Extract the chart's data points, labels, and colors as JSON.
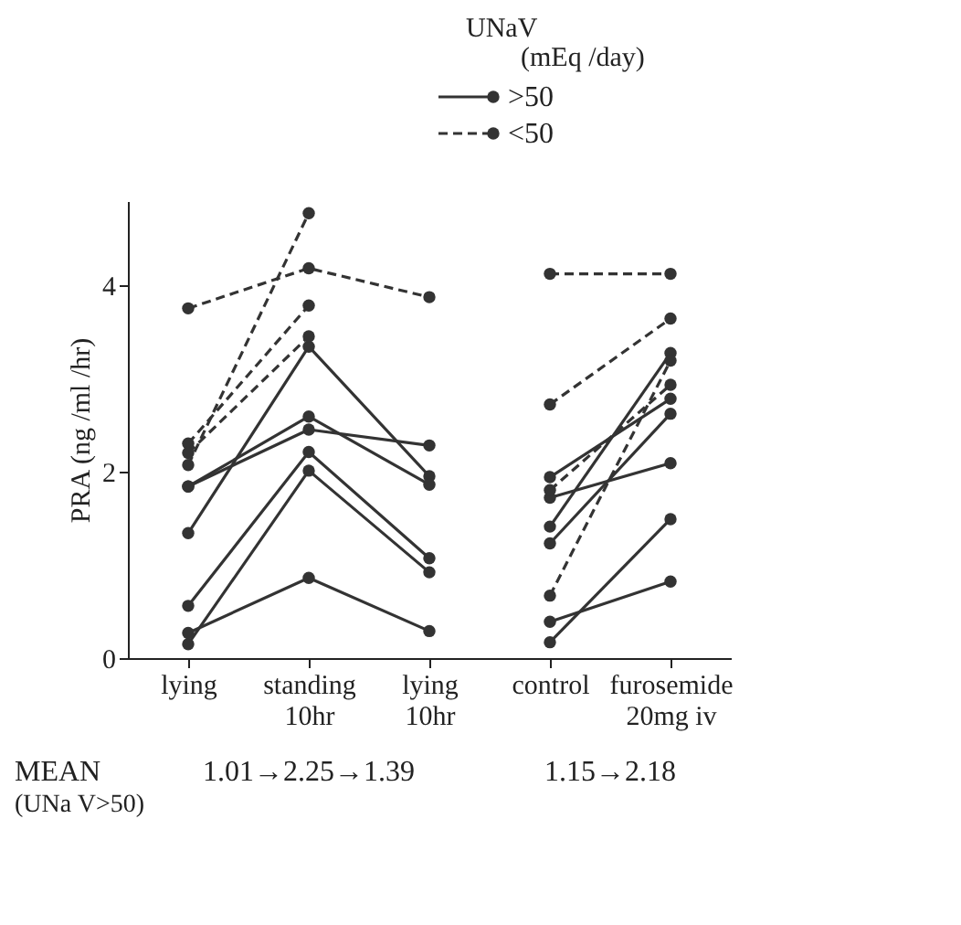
{
  "chart_data": {
    "type": "line",
    "ylabel": "PRA  (ng /ml /hr)",
    "legend_title": "UNaV\n(mEq /day)",
    "legend": "top right",
    "marker": "circle",
    "grid": false,
    "ylim": [
      0,
      4.9
    ],
    "yticks": [
      0,
      2,
      4
    ],
    "categories": [
      "lying",
      "standing\n10hr",
      "lying\n10hr",
      "control",
      "furosemide\n20mg iv"
    ],
    "annotations": [
      "MEAN",
      "(UNa V>50)",
      "1.01→2.25→1.39",
      "1.15→2.18"
    ],
    "series": [
      {
        "name": ">50",
        "color": "#333333",
        "line_style": "solid",
        "values": [
          1.34,
          3.34,
          1.95,
          null,
          null
        ]
      },
      {
        "color": "#333333",
        "line_style": "solid",
        "values": [
          1.84,
          2.59,
          1.86,
          null,
          null
        ]
      },
      {
        "color": "#333333",
        "line_style": "solid",
        "values": [
          1.84,
          2.45,
          2.28,
          null,
          null
        ]
      },
      {
        "color": "#333333",
        "line_style": "solid",
        "values": [
          0.56,
          2.21,
          1.07,
          null,
          null
        ]
      },
      {
        "color": "#333333",
        "line_style": "solid",
        "values": [
          0.15,
          2.01,
          0.92,
          null,
          null
        ]
      },
      {
        "color": "#333333",
        "line_style": "solid",
        "values": [
          0.27,
          0.86,
          0.29,
          null,
          null
        ]
      },
      {
        "name": "<50",
        "color": "#333333",
        "line_style": "dashed",
        "values": [
          3.75,
          4.18,
          3.87,
          null,
          null
        ]
      },
      {
        "color": "#333333",
        "line_style": "dashed",
        "values": [
          2.07,
          4.77,
          null,
          null,
          null
        ]
      },
      {
        "color": "#333333",
        "line_style": "dashed",
        "values": [
          2.3,
          3.78,
          null,
          null,
          null
        ]
      },
      {
        "color": "#333333",
        "line_style": "dashed",
        "values": [
          2.2,
          3.45,
          null,
          null,
          null
        ]
      },
      {
        "color": "#333333",
        "line_style": "solid",
        "values": [
          null,
          null,
          null,
          1.94,
          2.78
        ]
      },
      {
        "color": "#333333",
        "line_style": "solid",
        "values": [
          null,
          null,
          null,
          1.72,
          2.09
        ]
      },
      {
        "color": "#333333",
        "line_style": "solid",
        "values": [
          null,
          null,
          null,
          1.41,
          3.27
        ]
      },
      {
        "color": "#333333",
        "line_style": "solid",
        "values": [
          null,
          null,
          null,
          1.23,
          2.62
        ]
      },
      {
        "color": "#333333",
        "line_style": "solid",
        "values": [
          null,
          null,
          null,
          0.17,
          1.49
        ]
      },
      {
        "color": "#333333",
        "line_style": "solid",
        "values": [
          null,
          null,
          null,
          0.39,
          0.82
        ]
      },
      {
        "color": "#333333",
        "line_style": "dashed",
        "values": [
          null,
          null,
          null,
          4.12,
          4.12
        ]
      },
      {
        "color": "#333333",
        "line_style": "dashed",
        "values": [
          null,
          null,
          null,
          2.72,
          3.64
        ]
      },
      {
        "color": "#333333",
        "line_style": "dashed",
        "values": [
          null,
          null,
          null,
          0.67,
          3.19
        ]
      },
      {
        "color": "#333333",
        "line_style": "dashed",
        "values": [
          null,
          null,
          null,
          1.8,
          2.93
        ]
      }
    ]
  }
}
